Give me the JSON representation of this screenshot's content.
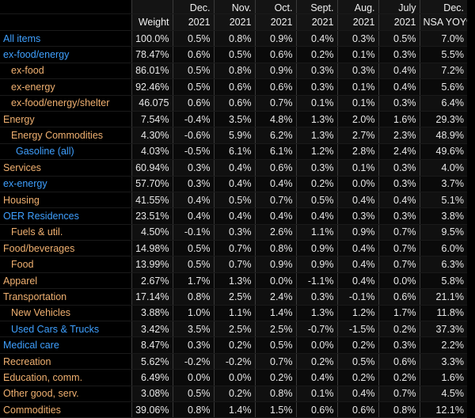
{
  "columns": {
    "weight": {
      "line1": "",
      "line2": "Weight"
    },
    "c1": {
      "line1": "Dec.",
      "line2": "2021"
    },
    "c2": {
      "line1": "Nov.",
      "line2": "2021"
    },
    "c3": {
      "line1": "Oct.",
      "line2": "2021"
    },
    "c4": {
      "line1": "Sept.",
      "line2": "2021"
    },
    "c5": {
      "line1": "Aug.",
      "line2": "2021"
    },
    "c6": {
      "line1": "July",
      "line2": "2021"
    },
    "c7": {
      "line1": "Dec.",
      "line2": "NSA YOY%"
    }
  },
  "rows": [
    {
      "label": "All items",
      "weight": "100.0%",
      "v": [
        "0.5%",
        "0.8%",
        "0.9%",
        "0.4%",
        "0.3%",
        "0.5%",
        "7.0%"
      ]
    },
    {
      "label": "ex-food/energy",
      "weight": "78.47%",
      "v": [
        "0.6%",
        "0.5%",
        "0.6%",
        "0.2%",
        "0.1%",
        "0.3%",
        "5.5%"
      ]
    },
    {
      "label": "ex-food",
      "weight": "86.01%",
      "v": [
        "0.5%",
        "0.8%",
        "0.9%",
        "0.3%",
        "0.3%",
        "0.4%",
        "7.2%"
      ]
    },
    {
      "label": "ex-energy",
      "weight": "92.46%",
      "v": [
        "0.5%",
        "0.6%",
        "0.6%",
        "0.3%",
        "0.1%",
        "0.4%",
        "5.6%"
      ]
    },
    {
      "label": "ex-food/energy/shelter",
      "weight": "46.075",
      "v": [
        "0.6%",
        "0.6%",
        "0.7%",
        "0.1%",
        "0.1%",
        "0.3%",
        "6.4%"
      ]
    },
    {
      "label": "Energy",
      "weight": "7.54%",
      "v": [
        "-0.4%",
        "3.5%",
        "4.8%",
        "1.3%",
        "2.0%",
        "1.6%",
        "29.3%"
      ]
    },
    {
      "label": "Energy Commodities",
      "weight": "4.30%",
      "v": [
        "-0.6%",
        "5.9%",
        "6.2%",
        "1.3%",
        "2.7%",
        "2.3%",
        "48.9%"
      ]
    },
    {
      "label": "Gasoline (all)",
      "weight": "4.03%",
      "v": [
        "-0.5%",
        "6.1%",
        "6.1%",
        "1.2%",
        "2.8%",
        "2.4%",
        "49.6%"
      ]
    },
    {
      "label": "Services",
      "weight": "60.94%",
      "v": [
        "0.3%",
        "0.4%",
        "0.6%",
        "0.3%",
        "0.1%",
        "0.3%",
        "4.0%"
      ]
    },
    {
      "label": "ex-energy",
      "weight": "57.70%",
      "v": [
        "0.3%",
        "0.4%",
        "0.4%",
        "0.2%",
        "0.0%",
        "0.3%",
        "3.7%"
      ]
    },
    {
      "label": "Housing",
      "weight": "41.55%",
      "v": [
        "0.4%",
        "0.5%",
        "0.7%",
        "0.5%",
        "0.4%",
        "0.4%",
        "5.1%"
      ]
    },
    {
      "label": "OER Residences",
      "weight": "23.51%",
      "v": [
        "0.4%",
        "0.4%",
        "0.4%",
        "0.4%",
        "0.3%",
        "0.3%",
        "3.8%"
      ]
    },
    {
      "label": "Fuels & util.",
      "weight": "4.50%",
      "v": [
        "-0.1%",
        "0.3%",
        "2.6%",
        "1.1%",
        "0.9%",
        "0.7%",
        "9.5%"
      ]
    },
    {
      "label": "Food/beverages",
      "weight": "14.98%",
      "v": [
        "0.5%",
        "0.7%",
        "0.8%",
        "0.9%",
        "0.4%",
        "0.7%",
        "6.0%"
      ]
    },
    {
      "label": "Food",
      "weight": "13.99%",
      "v": [
        "0.5%",
        "0.7%",
        "0.9%",
        "0.9%",
        "0.4%",
        "0.7%",
        "6.3%"
      ]
    },
    {
      "label": "Apparel",
      "weight": "2.67%",
      "v": [
        "1.7%",
        "1.3%",
        "0.0%",
        "-1.1%",
        "0.4%",
        "0.0%",
        "5.8%"
      ]
    },
    {
      "label": "Transportation",
      "weight": "17.14%",
      "v": [
        "0.8%",
        "2.5%",
        "2.4%",
        "0.3%",
        "-0.1%",
        "0.6%",
        "21.1%"
      ]
    },
    {
      "label": "New Vehicles",
      "weight": "3.88%",
      "v": [
        "1.0%",
        "1.1%",
        "1.4%",
        "1.3%",
        "1.2%",
        "1.7%",
        "11.8%"
      ]
    },
    {
      "label": "Used Cars & Trucks",
      "weight": "3.42%",
      "v": [
        "3.5%",
        "2.5%",
        "2.5%",
        "-0.7%",
        "-1.5%",
        "0.2%",
        "37.3%"
      ]
    },
    {
      "label": "Medical care",
      "weight": "8.47%",
      "v": [
        "0.3%",
        "0.2%",
        "0.5%",
        "0.0%",
        "0.2%",
        "0.3%",
        "2.2%"
      ]
    },
    {
      "label": "Recreation",
      "weight": "5.62%",
      "v": [
        "-0.2%",
        "-0.2%",
        "0.7%",
        "0.2%",
        "0.5%",
        "0.6%",
        "3.3%"
      ]
    },
    {
      "label": "Education, comm.",
      "weight": "6.49%",
      "v": [
        "0.0%",
        "0.0%",
        "0.2%",
        "0.4%",
        "0.2%",
        "0.2%",
        "1.6%"
      ]
    },
    {
      "label": "Other good, serv.",
      "weight": "3.08%",
      "v": [
        "0.5%",
        "0.2%",
        "0.8%",
        "0.1%",
        "0.4%",
        "0.7%",
        "4.5%"
      ]
    },
    {
      "label": "Commodities",
      "weight": "39.06%",
      "v": [
        "0.8%",
        "1.4%",
        "1.5%",
        "0.6%",
        "0.6%",
        "0.8%",
        "12.1%"
      ]
    }
  ],
  "colors": {
    "blue_label": "#3fa0ff",
    "orange_label": "#f0b070",
    "value_text": "#e8e8e8",
    "background": "#000000"
  }
}
